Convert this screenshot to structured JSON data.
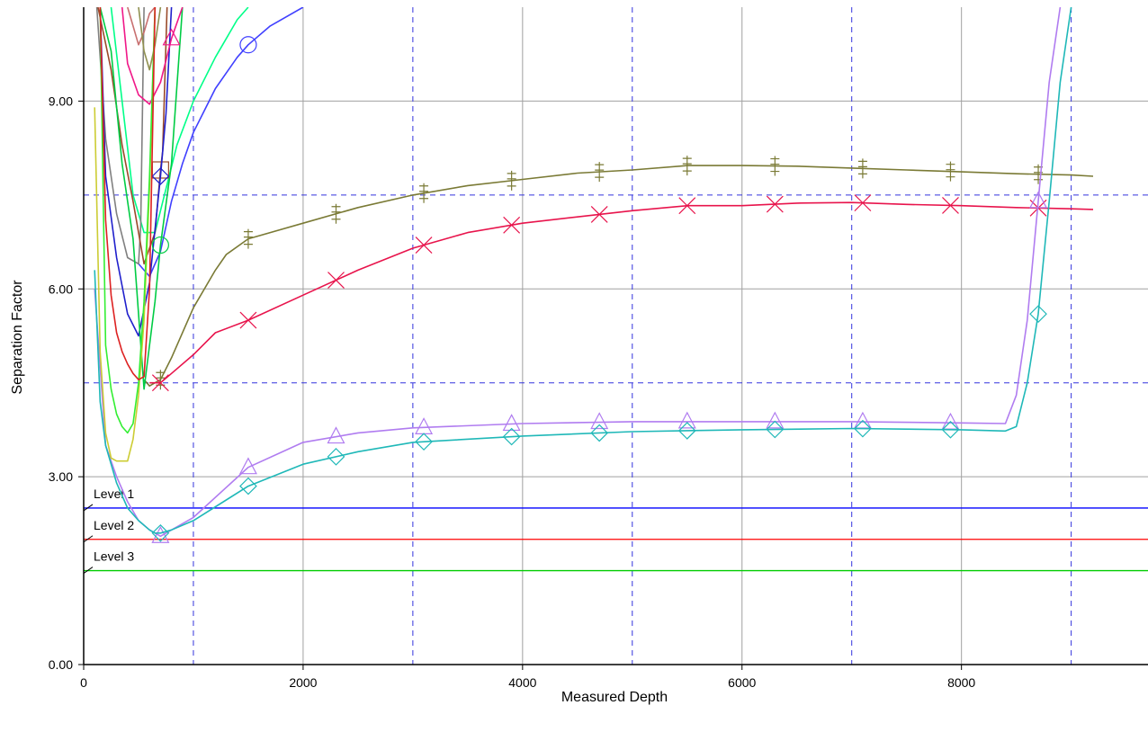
{
  "chart_data": {
    "type": "line",
    "xlabel": "Measured Depth",
    "ylabel": "Separation  Factor",
    "xlim": [
      0,
      9700
    ],
    "ylim": [
      0,
      10.5
    ],
    "x_ticks": [
      {
        "value": 0,
        "label": "0"
      },
      {
        "value": 2000,
        "label": "2000"
      },
      {
        "value": 4000,
        "label": "4000"
      },
      {
        "value": 6000,
        "label": "6000"
      },
      {
        "value": 8000,
        "label": "8000"
      }
    ],
    "y_ticks": [
      {
        "value": 0,
        "label": "0.00"
      },
      {
        "value": 3,
        "label": "3.00"
      },
      {
        "value": 6,
        "label": "6.00"
      },
      {
        "value": 9,
        "label": "9.00"
      }
    ],
    "grid": true,
    "grid_x_solid": [
      2000,
      4000,
      6000,
      8000
    ],
    "grid_y_solid": [
      3,
      6,
      9
    ],
    "grid_x_dashed": [
      1000,
      3000,
      5000,
      7000,
      9000
    ],
    "grid_y_dashed": [
      4.5,
      7.5
    ],
    "levels": [
      {
        "label": "Level  1",
        "value": 2.5,
        "color": "#0000ff"
      },
      {
        "label": "Level  2",
        "value": 2.0,
        "color": "#ff0000"
      },
      {
        "label": "Level  3",
        "value": 1.5,
        "color": "#00cc00"
      }
    ],
    "series": [
      {
        "color": "#7a7a35",
        "marker": "doubletick",
        "x": [
          550,
          600,
          700,
          800,
          1000,
          1200,
          1300,
          1500,
          2000,
          2500,
          3000,
          3500,
          4000,
          4500,
          5000,
          5500,
          6000,
          6500,
          7000,
          7500,
          8000,
          8500,
          9000,
          9200
        ],
        "y": [
          4.55,
          4.45,
          4.55,
          4.9,
          5.7,
          6.3,
          6.55,
          6.8,
          7.05,
          7.3,
          7.5,
          7.65,
          7.75,
          7.85,
          7.9,
          7.97,
          7.97,
          7.96,
          7.93,
          7.9,
          7.87,
          7.84,
          7.82,
          7.8
        ],
        "markers_x": [
          700,
          1500,
          2300,
          3100,
          3900,
          4700,
          5500,
          6300,
          7100,
          7900,
          8700
        ]
      },
      {
        "color": "#e8144c",
        "marker": "cross",
        "x": [
          600,
          700,
          800,
          1000,
          1200,
          1500,
          2000,
          2500,
          3000,
          3500,
          4000,
          4500,
          5000,
          5500,
          6000,
          6500,
          7000,
          7500,
          8000,
          8500,
          9000,
          9200
        ],
        "y": [
          4.5,
          4.5,
          4.65,
          4.95,
          5.3,
          5.5,
          5.9,
          6.3,
          6.65,
          6.9,
          7.05,
          7.15,
          7.25,
          7.33,
          7.33,
          7.37,
          7.38,
          7.35,
          7.33,
          7.3,
          7.28,
          7.27
        ],
        "markers_x": [
          700,
          1500,
          2300,
          3100,
          3900,
          4700,
          5500,
          6300,
          7100,
          7900,
          8700
        ]
      },
      {
        "color": "#b07cf0",
        "marker": "triangle",
        "x": [
          100,
          200,
          300,
          400,
          500,
          600,
          650,
          700,
          800,
          1000,
          1500,
          2000,
          2500,
          3000,
          4000,
          5000,
          6000,
          7000,
          8000,
          8400,
          8500,
          8600,
          8700,
          8800,
          8900
        ],
        "y": [
          6.0,
          3.5,
          3.0,
          2.6,
          2.3,
          2.15,
          2.1,
          2.05,
          2.15,
          2.35,
          3.15,
          3.55,
          3.7,
          3.78,
          3.85,
          3.88,
          3.88,
          3.88,
          3.86,
          3.85,
          4.3,
          5.5,
          7.4,
          9.3,
          10.5
        ],
        "markers_x": [
          700,
          1500,
          2300,
          3100,
          3900,
          4700,
          5500,
          6300,
          7100,
          7900,
          8700
        ]
      },
      {
        "color": "#1fb8b8",
        "marker": "diamond",
        "x": [
          100,
          150,
          200,
          300,
          400,
          500,
          600,
          650,
          700,
          800,
          1000,
          1500,
          2000,
          2500,
          3000,
          4000,
          5000,
          6000,
          7000,
          8000,
          8400,
          8500,
          8600,
          8700,
          8800,
          8900,
          9000
        ],
        "y": [
          6.3,
          4.2,
          3.5,
          2.9,
          2.5,
          2.3,
          2.15,
          2.1,
          2.1,
          2.15,
          2.3,
          2.85,
          3.2,
          3.4,
          3.55,
          3.65,
          3.72,
          3.75,
          3.77,
          3.75,
          3.73,
          3.8,
          4.5,
          5.6,
          7.4,
          9.3,
          10.5
        ],
        "markers_x": [
          700,
          1500,
          2300,
          3100,
          3900,
          4700,
          5500,
          6300,
          7100,
          7900,
          8700
        ]
      },
      {
        "color": "#4040ff",
        "marker": "circle",
        "x": [
          500,
          600,
          700,
          800,
          900,
          1000,
          1200,
          1400,
          1500,
          1700,
          2000
        ],
        "y": [
          6.4,
          6.2,
          6.6,
          7.4,
          8.0,
          8.5,
          9.2,
          9.7,
          9.9,
          10.2,
          10.5
        ],
        "markers_x": [
          1500
        ]
      },
      {
        "color": "#00ff88",
        "marker": "none",
        "x": [
          250,
          350,
          450,
          550,
          650,
          750,
          850,
          1000,
          1200,
          1400,
          1500
        ],
        "y": [
          10.5,
          9.0,
          7.5,
          6.9,
          6.9,
          7.6,
          8.3,
          9.0,
          9.7,
          10.3,
          10.5
        ],
        "markers_x": []
      },
      {
        "color": "#808080",
        "marker": "none",
        "x": [
          120,
          200,
          300,
          400,
          500,
          520,
          550
        ],
        "y": [
          10.5,
          8.4,
          7.2,
          6.5,
          6.4,
          7.0,
          10.5
        ],
        "markers_x": []
      },
      {
        "color": "#9a4a2a",
        "marker": "square",
        "x": [
          130,
          250,
          350,
          450,
          550,
          650,
          700,
          720,
          760
        ],
        "y": [
          10.5,
          9.5,
          8.3,
          7.4,
          6.4,
          6.9,
          7.9,
          8.2,
          10.5
        ],
        "markers_x": [
          700
        ]
      },
      {
        "color": "#2020cc",
        "marker": "diamond",
        "x": [
          150,
          200,
          300,
          400,
          500,
          600,
          700,
          750,
          800
        ],
        "y": [
          10.5,
          7.8,
          6.5,
          5.6,
          5.25,
          6.1,
          7.8,
          8.8,
          10.5
        ],
        "markers_x": [
          700
        ]
      },
      {
        "color": "#00cc44",
        "marker": "circle",
        "x": [
          150,
          250,
          350,
          450,
          550,
          650,
          700,
          800,
          900
        ],
        "y": [
          10.5,
          9.8,
          8.0,
          6.8,
          4.4,
          5.8,
          6.7,
          8.0,
          10.5
        ],
        "markers_x": [
          700
        ]
      },
      {
        "color": "#f01888",
        "marker": "triangle",
        "x": [
          350,
          400,
          500,
          600,
          700,
          800,
          900
        ],
        "y": [
          10.5,
          9.6,
          9.1,
          8.95,
          9.3,
          10.0,
          10.5
        ],
        "markers_x": [
          800
        ]
      },
      {
        "color": "#c87070",
        "marker": "none",
        "x": [
          400,
          450,
          500,
          550,
          600,
          650
        ],
        "y": [
          10.5,
          10.2,
          9.9,
          10.1,
          10.4,
          10.5
        ],
        "markers_x": []
      },
      {
        "color": "#909050",
        "marker": "none",
        "x": [
          500,
          550,
          600,
          650,
          700
        ],
        "y": [
          10.5,
          9.8,
          9.5,
          9.9,
          10.5
        ],
        "markers_x": []
      },
      {
        "color": "#cccc33",
        "marker": "none",
        "x": [
          100,
          150,
          200,
          250,
          300,
          350,
          400,
          450,
          500,
          550,
          600,
          650
        ],
        "y": [
          8.9,
          5.0,
          3.7,
          3.3,
          3.25,
          3.25,
          3.25,
          3.6,
          4.3,
          5.5,
          7.6,
          10.5
        ],
        "markers_x": []
      },
      {
        "color": "#33ee33",
        "marker": "none",
        "x": [
          150,
          200,
          250,
          300,
          350,
          400,
          450,
          500,
          550,
          600,
          650
        ],
        "y": [
          10.5,
          5.1,
          4.4,
          4.0,
          3.8,
          3.7,
          3.85,
          4.5,
          5.8,
          7.8,
          10.5
        ],
        "markers_x": []
      },
      {
        "color": "#dd2222",
        "marker": "none",
        "x": [
          150,
          200,
          250,
          300,
          350,
          400,
          450,
          500,
          550,
          600,
          650
        ],
        "y": [
          10.5,
          7.1,
          5.9,
          5.3,
          5.0,
          4.8,
          4.65,
          4.55,
          4.6,
          6.0,
          10.5
        ],
        "markers_x": []
      }
    ]
  }
}
